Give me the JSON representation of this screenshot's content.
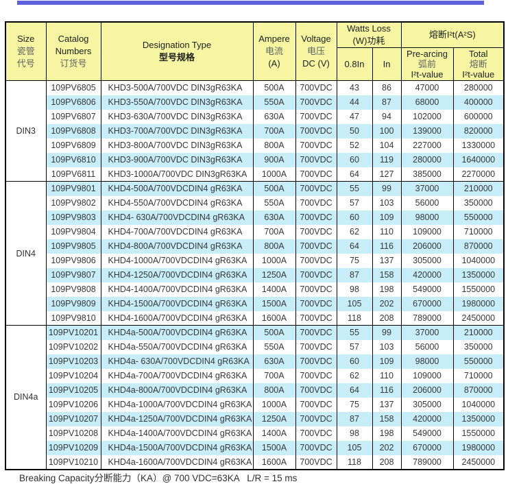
{
  "page": {
    "top_bar_color": "#5c60dd",
    "footer_note": "Breaking Capacity分断能力（KA）@ 700 VDC=63KA   L/R = 15 ms"
  },
  "colors": {
    "header_bg": "#f5f5a2",
    "row_stripe_bg": "#c7eef8",
    "row_bg": "#ffffff",
    "border": "#000000"
  },
  "header": {
    "size_en": "Size",
    "size_zh1": "瓷管",
    "size_zh2": "代号",
    "catalog_en1": "Catalog",
    "catalog_en2": "Numbers",
    "catalog_zh": "订货号",
    "designation_en": "Designation Type",
    "designation_zh": "型号规格",
    "ampere_en": "Ampere",
    "ampere_zh": "电流",
    "ampere_unit": "(A)",
    "voltage_en": "Voltage",
    "voltage_zh": "电压",
    "voltage_unit": "DC (V)",
    "watts_en": "Watts Loss",
    "watts_zh": "(W)功耗",
    "watts_sub1": "0.8In",
    "watts_sub2": "In",
    "i2t_title": "熔断I²t(A²S)",
    "prearcing_en": "Pre-arcing",
    "prearcing_zh": "弧前",
    "prearcing_sub": "I²t-value",
    "total_en": "Total",
    "total_zh": "熔断",
    "total_sub": "I²t-value"
  },
  "groups": [
    {
      "size": "DIN3",
      "rows": [
        {
          "catalog": "109PV6805",
          "designation": "KHD3-500A/700VDC DIN3gR63KA",
          "ampere": "500A",
          "voltage": "700VDC",
          "watts_08in": "43",
          "watts_in": "86",
          "prearcing_i2t": "47000",
          "total_i2t": "280000"
        },
        {
          "catalog": "109PV6806",
          "designation": "KHD3-550A/700VDC DIN3gR63KA",
          "ampere": "550A",
          "voltage": "700VDC",
          "watts_08in": "44",
          "watts_in": "87",
          "prearcing_i2t": "68000",
          "total_i2t": "400000"
        },
        {
          "catalog": "109PV6807",
          "designation": "KHD3-630A/700VDC DIN3gR63KA",
          "ampere": "630A",
          "voltage": "700VDC",
          "watts_08in": "47",
          "watts_in": "94",
          "prearcing_i2t": "102000",
          "total_i2t": "600000"
        },
        {
          "catalog": "109PV6808",
          "designation": "KHD3-700A/700VDC DIN3gR63KA",
          "ampere": "700A",
          "voltage": "700VDC",
          "watts_08in": "50",
          "watts_in": "100",
          "prearcing_i2t": "139000",
          "total_i2t": "820000"
        },
        {
          "catalog": "109PV6809",
          "designation": "KHD3-800A/700VDC DIN3gR63KA",
          "ampere": "800A",
          "voltage": "700VDC",
          "watts_08in": "52",
          "watts_in": "104",
          "prearcing_i2t": "227000",
          "total_i2t": "1330000"
        },
        {
          "catalog": "109PV6810",
          "designation": "KHD3-900A/700VDC DIN3gR63KA",
          "ampere": "900A",
          "voltage": "700VDC",
          "watts_08in": "60",
          "watts_in": "119",
          "prearcing_i2t": "280000",
          "total_i2t": "1640000"
        },
        {
          "catalog": "109PV6811",
          "designation": "KHD3-1000A/700VDC DIN3gR63KA",
          "ampere": "1000A",
          "voltage": "700VDC",
          "watts_08in": "64",
          "watts_in": "127",
          "prearcing_i2t": "385000",
          "total_i2t": "2270000"
        }
      ]
    },
    {
      "size": "DIN4",
      "rows": [
        {
          "catalog": "109PV9801",
          "designation": "KHD4-500A/700VDCDIN4 gR63KA",
          "ampere": "500A",
          "voltage": "700VDC",
          "watts_08in": "55",
          "watts_in": "99",
          "prearcing_i2t": "37000",
          "total_i2t": "210000"
        },
        {
          "catalog": "109PV9802",
          "designation": "KHD4-550A/700VDCDIN4 gR63KA",
          "ampere": "550A",
          "voltage": "700VDC",
          "watts_08in": "57",
          "watts_in": "103",
          "prearcing_i2t": "56000",
          "total_i2t": "350000"
        },
        {
          "catalog": "109PV9803",
          "designation": "KHD4- 630A/700VDCDIN4 gR63KA",
          "ampere": "630A",
          "voltage": "700VDC",
          "watts_08in": "60",
          "watts_in": "109",
          "prearcing_i2t": "98000",
          "total_i2t": "550000"
        },
        {
          "catalog": "109PV9804",
          "designation": "KHD4-700A/700VDCDIN4 gR63KA",
          "ampere": "700A",
          "voltage": "700VDC",
          "watts_08in": "62",
          "watts_in": "110",
          "prearcing_i2t": "109000",
          "total_i2t": "710000"
        },
        {
          "catalog": "109PV9805",
          "designation": "KHD4-800A/700VDCDIN4 gR63KA",
          "ampere": "800A",
          "voltage": "700VDC",
          "watts_08in": "64",
          "watts_in": "116",
          "prearcing_i2t": "206000",
          "total_i2t": "870000"
        },
        {
          "catalog": "109PV9806",
          "designation": "KHD4-1000A/700VDCDIN4 gR63KA",
          "ampere": "1000A",
          "voltage": "700VDC",
          "watts_08in": "75",
          "watts_in": "137",
          "prearcing_i2t": "305000",
          "total_i2t": "1040000"
        },
        {
          "catalog": "109PV9807",
          "designation": "KHD4-1250A/700VDCDIN4 gR63KA",
          "ampere": "1250A",
          "voltage": "700VDC",
          "watts_08in": "87",
          "watts_in": "158",
          "prearcing_i2t": "420000",
          "total_i2t": "1350000"
        },
        {
          "catalog": "109PV9808",
          "designation": "KHD4-1400A/700VDCDIN4 gR63KA",
          "ampere": "1400A",
          "voltage": "700VDC",
          "watts_08in": "98",
          "watts_in": "198",
          "prearcing_i2t": "549000",
          "total_i2t": "1550000"
        },
        {
          "catalog": "109PV9809",
          "designation": "KHD4-1500A/700VDCDIN4 gR63KA",
          "ampere": "1500A",
          "voltage": "700VDC",
          "watts_08in": "105",
          "watts_in": "202",
          "prearcing_i2t": "670000",
          "total_i2t": "1980000"
        },
        {
          "catalog": "109PV9810",
          "designation": "KHD4-1600A/700VDCDIN4 gR63KA",
          "ampere": "1600A",
          "voltage": "700VDC",
          "watts_08in": "118",
          "watts_in": "208",
          "prearcing_i2t": "789000",
          "total_i2t": "2450000"
        }
      ]
    },
    {
      "size": "DIN4a",
      "rows": [
        {
          "catalog": "109PV10201",
          "designation": "KHD4a-500A/700VDCDIN4 gR63KA",
          "ampere": "500A",
          "voltage": "700VDC",
          "watts_08in": "55",
          "watts_in": "99",
          "prearcing_i2t": "37000",
          "total_i2t": "210000"
        },
        {
          "catalog": "109PV10202",
          "designation": "KHD4a-550A/700VDCDIN4 gR63KA",
          "ampere": "550A",
          "voltage": "700VDC",
          "watts_08in": "57",
          "watts_in": "103",
          "prearcing_i2t": "56000",
          "total_i2t": "350000"
        },
        {
          "catalog": "109PV10203",
          "designation": "KHD4a- 630A/700VDCDIN4 gR63KA",
          "ampere": "630A",
          "voltage": "700VDC",
          "watts_08in": "60",
          "watts_in": "109",
          "prearcing_i2t": "98000",
          "total_i2t": "550000"
        },
        {
          "catalog": "109PV10204",
          "designation": "KHD4a-700A/700VDCDIN4 gR63KA",
          "ampere": "700A",
          "voltage": "700VDC",
          "watts_08in": "62",
          "watts_in": "110",
          "prearcing_i2t": "109000",
          "total_i2t": "710000"
        },
        {
          "catalog": "109PV10205",
          "designation": "KHD4a-800A/700VDCDIN4 gR63KA",
          "ampere": "800A",
          "voltage": "700VDC",
          "watts_08in": "64",
          "watts_in": "116",
          "prearcing_i2t": "206000",
          "total_i2t": "870000"
        },
        {
          "catalog": "109PV10206",
          "designation": "KHD4a-1000A/700VDCDIN4 gR63KA",
          "ampere": "1000A",
          "voltage": "700VDC",
          "watts_08in": "75",
          "watts_in": "137",
          "prearcing_i2t": "305000",
          "total_i2t": "1040000"
        },
        {
          "catalog": "109PV10207",
          "designation": "KHD4a-1250A/700VDCDIN4 gR63KA",
          "ampere": "1250A",
          "voltage": "700VDC",
          "watts_08in": "87",
          "watts_in": "158",
          "prearcing_i2t": "420000",
          "total_i2t": "1350000"
        },
        {
          "catalog": "109PV10208",
          "designation": "KHD4a-1400A/700VDCDIN4 gR63KA",
          "ampere": "1400A",
          "voltage": "700VDC",
          "watts_08in": "98",
          "watts_in": "198",
          "prearcing_i2t": "549000",
          "total_i2t": "1550000"
        },
        {
          "catalog": "109PV10209",
          "designation": "KHD4a-1500A/700VDCDIN4 gR63KA",
          "ampere": "1500A",
          "voltage": "700VDC",
          "watts_08in": "105",
          "watts_in": "202",
          "prearcing_i2t": "670000",
          "total_i2t": "1980000"
        },
        {
          "catalog": "109PV10210",
          "designation": "KHD4a-1600A/700VDCDIN4 gR63KA",
          "ampere": "1600A",
          "voltage": "700VDC",
          "watts_08in": "118",
          "watts_in": "208",
          "prearcing_i2t": "789000",
          "total_i2t": "2450000"
        }
      ]
    }
  ]
}
